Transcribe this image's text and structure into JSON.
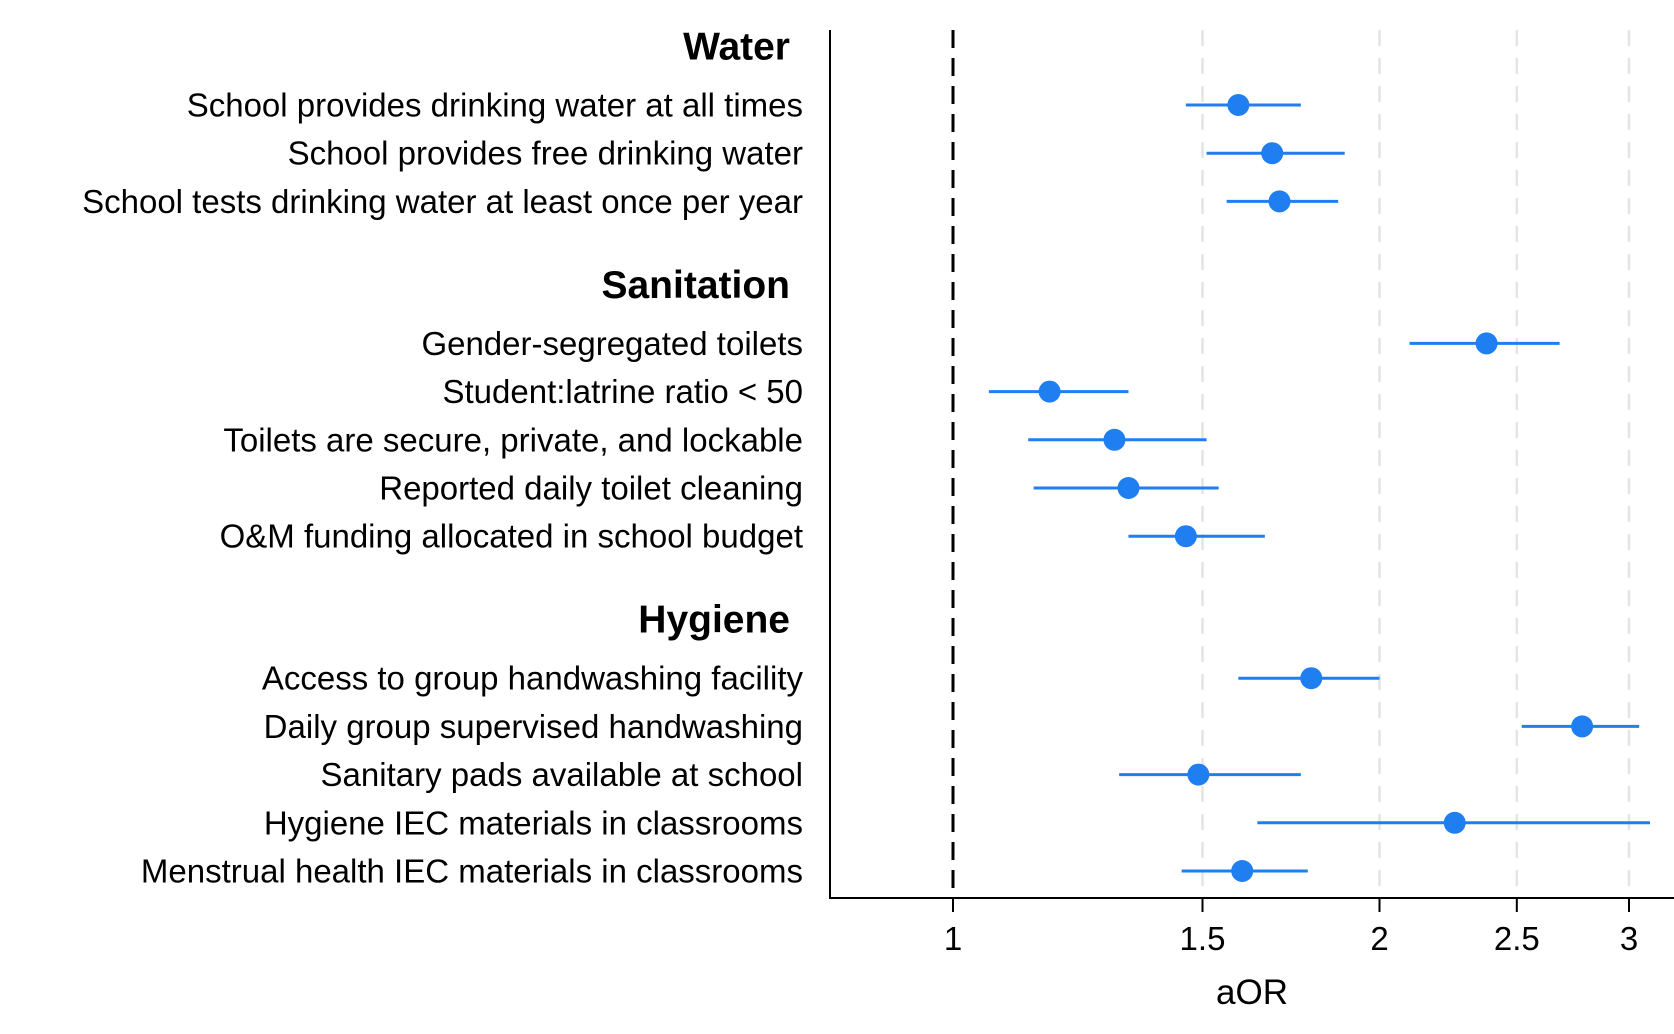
{
  "chart_data": {
    "type": "forest",
    "xlabel": "aOR",
    "x_scale": "log",
    "xlim": [
      0.82,
      3.1
    ],
    "reference_line": 1,
    "x_ticks": [
      1,
      1.5,
      2,
      2.5,
      3
    ],
    "x_tick_labels": [
      "1",
      "1.5",
      "2",
      "2.5",
      "3"
    ],
    "grid": "vertical dashed at ticks",
    "point_color": "#1f7ff0",
    "groups": [
      {
        "name": "Water",
        "items": [
          {
            "label": "School provides drinking water at all times",
            "estimate": 1.59,
            "ci_low": 1.46,
            "ci_high": 1.76
          },
          {
            "label": "School provides free drinking water",
            "estimate": 1.68,
            "ci_low": 1.51,
            "ci_high": 1.89
          },
          {
            "label": "School tests drinking water at least once per year",
            "estimate": 1.7,
            "ci_low": 1.56,
            "ci_high": 1.87
          }
        ]
      },
      {
        "name": "Sanitation",
        "items": [
          {
            "label": "Gender-segregated toilets",
            "estimate": 2.38,
            "ci_low": 2.1,
            "ci_high": 2.68
          },
          {
            "label": "Student:latrine ratio < 50",
            "estimate": 1.17,
            "ci_low": 1.06,
            "ci_high": 1.33
          },
          {
            "label": "Toilets are secure, private, and lockable",
            "estimate": 1.3,
            "ci_low": 1.13,
            "ci_high": 1.51
          },
          {
            "label": "Reported daily toilet cleaning",
            "estimate": 1.33,
            "ci_low": 1.14,
            "ci_high": 1.54
          },
          {
            "label": "O&M funding allocated in school budget",
            "estimate": 1.46,
            "ci_low": 1.33,
            "ci_high": 1.66
          }
        ]
      },
      {
        "name": "Hygiene",
        "items": [
          {
            "label": "Access to group handwashing facility",
            "estimate": 1.79,
            "ci_low": 1.59,
            "ci_high": 2.0
          },
          {
            "label": "Daily group supervised handwashing",
            "estimate": 2.78,
            "ci_low": 2.52,
            "ci_high": 3.05
          },
          {
            "label": "Sanitary pads available at school",
            "estimate": 1.49,
            "ci_low": 1.31,
            "ci_high": 1.76
          },
          {
            "label": "Hygiene IEC materials in classrooms",
            "estimate": 2.26,
            "ci_low": 1.64,
            "ci_high": 3.15
          },
          {
            "label": "Menstrual health IEC materials in classrooms",
            "estimate": 1.6,
            "ci_low": 1.45,
            "ci_high": 1.78
          }
        ]
      }
    ]
  }
}
